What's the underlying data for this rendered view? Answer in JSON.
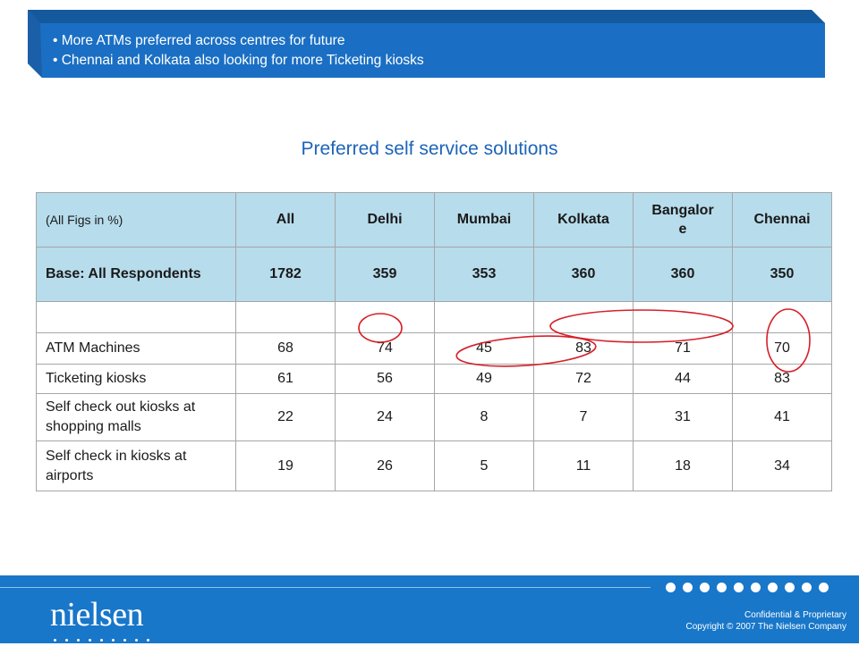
{
  "banner": {
    "bullets": [
      "More ATMs preferred across centres for future",
      "Chennai and Kolkata also looking for more Ticketing kiosks"
    ]
  },
  "title": "Preferred self service solutions",
  "table": {
    "header": [
      "(All Figs in %)",
      "All",
      "Delhi",
      "Mumbai",
      "Kolkata",
      "Bangalor e",
      "Chennai"
    ],
    "base": [
      "Base: All Respondents",
      "1782",
      "359",
      "353",
      "360",
      "360",
      "350"
    ],
    "rows": [
      {
        "label": "ATM Machines",
        "values": [
          "68",
          "74",
          "45",
          "83",
          "71",
          "70"
        ]
      },
      {
        "label": "Ticketing kiosks",
        "values": [
          "61",
          "56",
          "49",
          "72",
          "44",
          "83"
        ]
      },
      {
        "label": "Self check out kiosks at shopping malls",
        "values": [
          "22",
          "24",
          "8",
          "7",
          "31",
          "41"
        ]
      },
      {
        "label": "Self check in kiosks at airports",
        "values": [
          "19",
          "26",
          "5",
          "11",
          "18",
          "34"
        ]
      }
    ]
  },
  "footer": {
    "logo": "nielsen",
    "confidential": "Confidential & Proprietary",
    "copyright": "Copyright © 2007 The Nielsen Company"
  },
  "colors": {
    "banner": "#1a6fc4",
    "header_fill": "#b7dcec",
    "title": "#1d64b8",
    "oval": "#d6202a",
    "footer": "#1877c9"
  }
}
